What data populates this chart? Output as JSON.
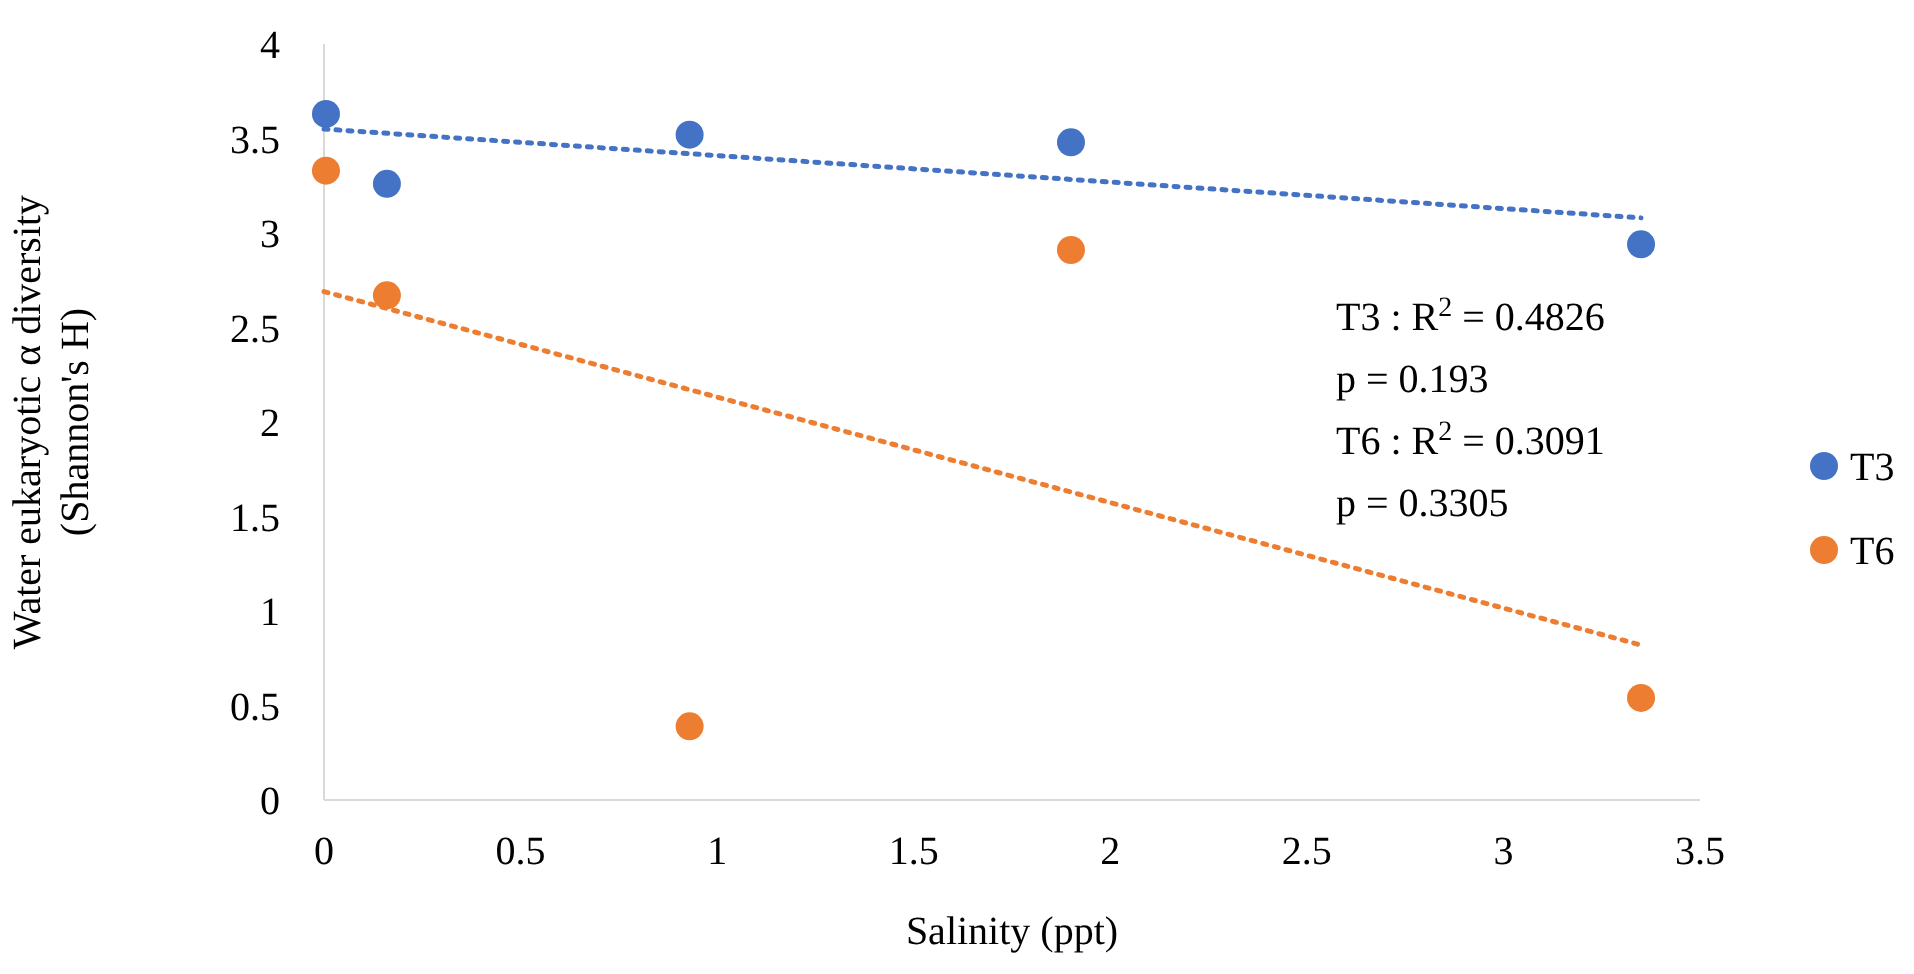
{
  "chart_data": {
    "type": "scatter",
    "xlabel": "Salinity (ppt)",
    "ylabel": "Water eukaryotic α diversity\n(Shannon's H)",
    "xlim": [
      0,
      3.5
    ],
    "xticks": [
      0,
      0.5,
      1,
      1.5,
      2,
      2.5,
      3,
      3.5
    ],
    "ylim": [
      0,
      4
    ],
    "yticks": [
      0,
      0.5,
      1,
      1.5,
      2,
      2.5,
      3,
      3.5,
      4
    ],
    "grid": false,
    "legend": "right",
    "marker": "circle",
    "series": [
      {
        "name": "T3",
        "color": "#4472c4",
        "x": [
          0.005,
          0.16,
          0.93,
          1.9,
          3.35
        ],
        "values": [
          3.63,
          3.26,
          3.52,
          3.48,
          2.94
        ]
      },
      {
        "name": "T6",
        "color": "#ed7d31",
        "x": [
          0.005,
          0.16,
          0.93,
          1.9,
          3.35
        ],
        "values": [
          3.33,
          2.67,
          0.39,
          2.91,
          0.54
        ]
      },
      {
        "type": "line",
        "color": "#4472c4",
        "line_style": "dotted",
        "marker": "none",
        "x": [
          0,
          3.35
        ],
        "values": [
          3.55,
          3.08
        ]
      },
      {
        "type": "line",
        "color": "#ed7d31",
        "line_style": "dotted",
        "marker": "none",
        "x": [
          0,
          3.35
        ],
        "values": [
          2.69,
          0.82
        ]
      }
    ],
    "annotations": [
      "T3 : R$^{2}$ = 0.4826",
      "p = 0.193",
      "T6 : R$^{2}$ = 0.3091",
      "p = 0.3305"
    ]
  }
}
